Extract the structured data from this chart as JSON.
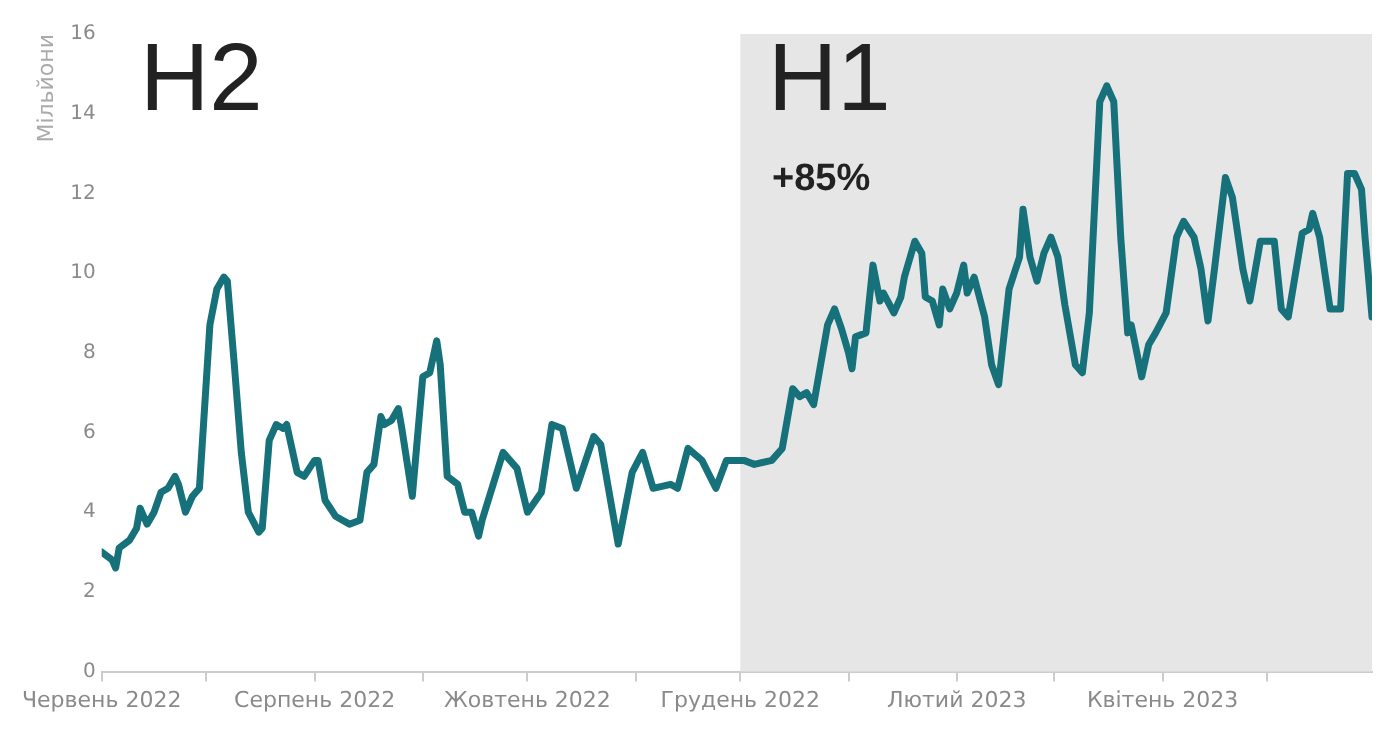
{
  "chart_data": {
    "type": "line",
    "ylabel": "Мільйони",
    "x": [
      "2022-06-01",
      "2022-06-04",
      "2022-06-05",
      "2022-06-06",
      "2022-06-09",
      "2022-06-11",
      "2022-06-12",
      "2022-06-14",
      "2022-06-16",
      "2022-06-18",
      "2022-06-20",
      "2022-06-22",
      "2022-06-23",
      "2022-06-25",
      "2022-06-27",
      "2022-06-29",
      "2022-07-02",
      "2022-07-04",
      "2022-07-06",
      "2022-07-07",
      "2022-07-09",
      "2022-07-11",
      "2022-07-13",
      "2022-07-16",
      "2022-07-17",
      "2022-07-19",
      "2022-07-21",
      "2022-07-23",
      "2022-07-24",
      "2022-07-27",
      "2022-07-29",
      "2022-08-01",
      "2022-08-02",
      "2022-08-04",
      "2022-08-07",
      "2022-08-09",
      "2022-08-11",
      "2022-08-14",
      "2022-08-16",
      "2022-08-18",
      "2022-08-20",
      "2022-08-21",
      "2022-08-23",
      "2022-08-25",
      "2022-08-26",
      "2022-08-29",
      "2022-09-01",
      "2022-09-03",
      "2022-09-05",
      "2022-09-06",
      "2022-09-08",
      "2022-09-11",
      "2022-09-13",
      "2022-09-15",
      "2022-09-17",
      "2022-09-18",
      "2022-09-24",
      "2022-09-28",
      "2022-10-01",
      "2022-10-05",
      "2022-10-08",
      "2022-10-11",
      "2022-10-15",
      "2022-10-20",
      "2022-10-22",
      "2022-10-27",
      "2022-10-31",
      "2022-11-03",
      "2022-11-06",
      "2022-11-11",
      "2022-11-13",
      "2022-11-16",
      "2022-11-20",
      "2022-11-24",
      "2022-11-27",
      "2022-12-02",
      "2022-12-05",
      "2022-12-10",
      "2022-12-13",
      "2022-12-16",
      "2022-12-18",
      "2022-12-20",
      "2022-12-22",
      "2022-12-24",
      "2022-12-26",
      "2022-12-28",
      "2022-12-30",
      "2023-01-01",
      "2023-01-02",
      "2023-01-03",
      "2023-01-06",
      "2023-01-08",
      "2023-01-10",
      "2023-01-11",
      "2023-01-14",
      "2023-01-16",
      "2023-01-17",
      "2023-01-20",
      "2023-01-22",
      "2023-01-23",
      "2023-01-25",
      "2023-01-27",
      "2023-01-28",
      "2023-01-30",
      "2023-02-01",
      "2023-02-03",
      "2023-02-04",
      "2023-02-06",
      "2023-02-09",
      "2023-02-11",
      "2023-02-13",
      "2023-02-16",
      "2023-02-19",
      "2023-02-20",
      "2023-02-22",
      "2023-02-24",
      "2023-02-26",
      "2023-02-28",
      "2023-03-02",
      "2023-03-04",
      "2023-03-07",
      "2023-03-09",
      "2023-03-11",
      "2023-03-14",
      "2023-03-16",
      "2023-03-18",
      "2023-03-20",
      "2023-03-22",
      "2023-03-23",
      "2023-03-26",
      "2023-03-28",
      "2023-03-30",
      "2023-04-02",
      "2023-04-05",
      "2023-04-07",
      "2023-04-10",
      "2023-04-12",
      "2023-04-14",
      "2023-04-16",
      "2023-04-19",
      "2023-04-21",
      "2023-04-24",
      "2023-04-26",
      "2023-04-29",
      "2023-05-01",
      "2023-05-03",
      "2023-05-05",
      "2023-05-07",
      "2023-05-11",
      "2023-05-13",
      "2023-05-14",
      "2023-05-16",
      "2023-05-19",
      "2023-05-22",
      "2023-05-24",
      "2023-05-26",
      "2023-05-28",
      "2023-05-29",
      "2023-05-31"
    ],
    "series": [
      {
        "color": "#16717b",
        "values": [
          3.0,
          2.8,
          2.6,
          3.1,
          3.3,
          3.6,
          4.1,
          3.7,
          4.0,
          4.5,
          4.6,
          4.9,
          4.7,
          4.0,
          4.4,
          4.6,
          8.7,
          9.6,
          9.9,
          9.8,
          7.7,
          5.5,
          4.0,
          3.5,
          3.6,
          5.8,
          6.2,
          6.1,
          6.2,
          5.0,
          4.9,
          5.3,
          5.3,
          4.3,
          3.9,
          3.8,
          3.7,
          3.8,
          5.0,
          5.2,
          6.4,
          6.2,
          6.3,
          6.6,
          6.1,
          4.4,
          7.4,
          7.5,
          8.3,
          7.7,
          4.9,
          4.7,
          4.0,
          4.0,
          3.4,
          3.8,
          5.5,
          5.1,
          4.0,
          4.5,
          6.2,
          6.1,
          4.6,
          5.9,
          5.7,
          3.2,
          5.0,
          5.5,
          4.6,
          4.7,
          4.6,
          5.6,
          5.3,
          4.6,
          5.3,
          5.3,
          5.2,
          5.3,
          5.6,
          7.1,
          6.9,
          7.0,
          6.7,
          7.7,
          8.7,
          9.1,
          8.6,
          8.0,
          7.6,
          8.4,
          8.5,
          10.2,
          9.3,
          9.5,
          9.0,
          9.4,
          9.9,
          10.8,
          10.5,
          9.4,
          9.3,
          8.7,
          9.6,
          9.1,
          9.5,
          10.2,
          9.5,
          9.9,
          8.9,
          7.7,
          7.2,
          9.6,
          10.4,
          11.6,
          10.4,
          9.8,
          10.5,
          10.9,
          10.4,
          9.2,
          7.7,
          7.5,
          9.0,
          14.3,
          14.7,
          14.3,
          10.9,
          8.5,
          8.7,
          7.4,
          8.2,
          8.5,
          9.0,
          10.9,
          11.3,
          10.9,
          10.1,
          8.8,
          10.2,
          12.4,
          11.9,
          10.1,
          9.3,
          10.8,
          10.8,
          10.8,
          9.1,
          8.9,
          11.0,
          11.1,
          11.5,
          10.9,
          9.1,
          9.1,
          12.5,
          12.5,
          12.1,
          10.9,
          8.9
        ]
      }
    ],
    "xlim": [
      "2022-06-01",
      "2023-05-31"
    ],
    "xticks": [
      {
        "value": "2022-06-01",
        "label": "Червень 2022"
      },
      {
        "value": "2022-07-01",
        "label": null
      },
      {
        "value": "2022-08-01",
        "label": "Серпень 2022"
      },
      {
        "value": "2022-09-01",
        "label": null
      },
      {
        "value": "2022-10-01",
        "label": "Жовтень 2022"
      },
      {
        "value": "2022-11-01",
        "label": null
      },
      {
        "value": "2022-12-01",
        "label": "Грудень 2022"
      },
      {
        "value": "2023-01-01",
        "label": null
      },
      {
        "value": "2023-02-01",
        "label": "Лютий 2023"
      },
      {
        "value": "2023-03-01",
        "label": null
      },
      {
        "value": "2023-04-01",
        "label": "Квітень 2023"
      },
      {
        "value": "2023-05-01",
        "label": null
      }
    ],
    "ylim": [
      0,
      16
    ],
    "yticks": [
      0,
      2,
      4,
      6,
      8,
      10,
      12,
      14,
      16
    ],
    "bands": [
      {
        "axis": "x",
        "from": "2022-12-01",
        "to": "2023-05-31",
        "color": "#e6e6e6"
      }
    ],
    "annotations": [
      "H2",
      "H1",
      "+85%"
    ],
    "line_style": "solid",
    "marker": "none",
    "grid": false,
    "legend": false
  }
}
